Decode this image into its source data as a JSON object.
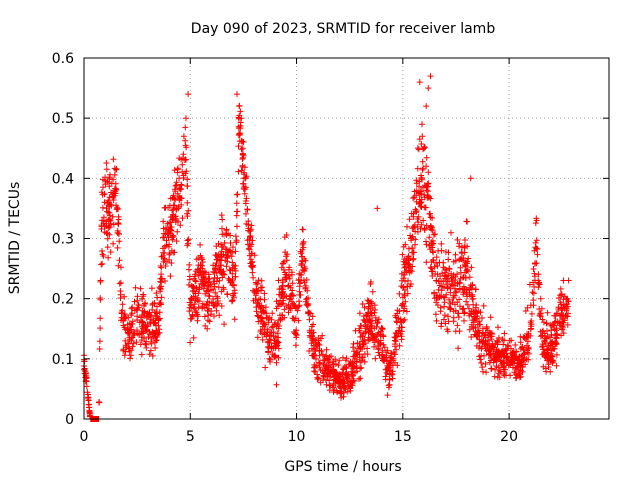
{
  "chart_data": {
    "type": "scatter",
    "title": "Day 090 of 2023, SRMTID for receiver lamb",
    "xlabel": "GPS time / hours",
    "ylabel": "SRMTID / TECUs",
    "xlim": [
      0,
      24.7
    ],
    "ylim": [
      0,
      0.6
    ],
    "xticks": [
      0,
      5,
      10,
      15,
      20
    ],
    "yticks": [
      0,
      0.1,
      0.2,
      0.3,
      0.4,
      0.5,
      0.6
    ],
    "xtick_labels": [
      "0",
      "5",
      "10",
      "15",
      "20"
    ],
    "ytick_labels": [
      "0",
      "0.1",
      "0.2",
      "0.3",
      "0.4",
      "0.5",
      "0.6"
    ],
    "grid": true,
    "marker": "+",
    "color": "#ff0000",
    "series": [
      {
        "name": "SRMTID",
        "profile": [
          [
            0.0,
            0.1,
            0.02
          ],
          [
            0.3,
            0.0,
            0.0
          ],
          [
            0.7,
            0.0,
            0.0
          ],
          [
            0.8,
            0.3,
            0.08
          ],
          [
            1.0,
            0.36,
            0.06
          ],
          [
            1.3,
            0.34,
            0.06
          ],
          [
            1.5,
            0.4,
            0.05
          ],
          [
            1.8,
            0.16,
            0.05
          ],
          [
            2.2,
            0.14,
            0.05
          ],
          [
            2.6,
            0.18,
            0.05
          ],
          [
            3.0,
            0.15,
            0.05
          ],
          [
            3.5,
            0.16,
            0.05
          ],
          [
            3.8,
            0.3,
            0.07
          ],
          [
            4.2,
            0.33,
            0.06
          ],
          [
            4.6,
            0.4,
            0.06
          ],
          [
            4.8,
            0.45,
            0.07
          ],
          [
            5.0,
            0.18,
            0.05
          ],
          [
            5.5,
            0.22,
            0.06
          ],
          [
            6.0,
            0.2,
            0.05
          ],
          [
            6.4,
            0.25,
            0.07
          ],
          [
            6.8,
            0.28,
            0.06
          ],
          [
            7.1,
            0.2,
            0.05
          ],
          [
            7.3,
            0.5,
            0.04
          ],
          [
            7.6,
            0.38,
            0.05
          ],
          [
            8.0,
            0.22,
            0.05
          ],
          [
            8.5,
            0.15,
            0.05
          ],
          [
            9.0,
            0.12,
            0.05
          ],
          [
            9.5,
            0.25,
            0.07
          ],
          [
            10.0,
            0.15,
            0.05
          ],
          [
            10.3,
            0.28,
            0.04
          ],
          [
            10.6,
            0.15,
            0.04
          ],
          [
            11.0,
            0.1,
            0.04
          ],
          [
            11.5,
            0.08,
            0.03
          ],
          [
            12.0,
            0.06,
            0.03
          ],
          [
            12.5,
            0.07,
            0.03
          ],
          [
            13.0,
            0.12,
            0.05
          ],
          [
            13.5,
            0.18,
            0.06
          ],
          [
            14.0,
            0.12,
            0.04
          ],
          [
            14.4,
            0.08,
            0.03
          ],
          [
            14.8,
            0.15,
            0.05
          ],
          [
            15.2,
            0.25,
            0.08
          ],
          [
            15.5,
            0.3,
            0.08
          ],
          [
            15.8,
            0.4,
            0.08
          ],
          [
            16.2,
            0.35,
            0.08
          ],
          [
            16.6,
            0.2,
            0.07
          ],
          [
            17.0,
            0.22,
            0.07
          ],
          [
            17.5,
            0.2,
            0.07
          ],
          [
            18.0,
            0.25,
            0.07
          ],
          [
            18.5,
            0.15,
            0.05
          ],
          [
            19.0,
            0.12,
            0.04
          ],
          [
            19.5,
            0.1,
            0.03
          ],
          [
            20.0,
            0.1,
            0.03
          ],
          [
            20.5,
            0.09,
            0.03
          ],
          [
            21.0,
            0.16,
            0.05
          ],
          [
            21.3,
            0.28,
            0.05
          ],
          [
            21.6,
            0.12,
            0.04
          ],
          [
            22.0,
            0.12,
            0.04
          ],
          [
            22.5,
            0.18,
            0.04
          ],
          [
            22.8,
            0.2,
            0.04
          ]
        ],
        "highlights": [
          [
            4.9,
            0.54
          ],
          [
            4.8,
            0.5
          ],
          [
            4.7,
            0.47
          ],
          [
            7.2,
            0.54
          ],
          [
            7.3,
            0.52
          ],
          [
            7.4,
            0.5
          ],
          [
            15.8,
            0.56
          ],
          [
            16.3,
            0.57
          ],
          [
            16.2,
            0.55
          ],
          [
            16.1,
            0.52
          ],
          [
            15.9,
            0.49
          ],
          [
            16.0,
            0.45
          ],
          [
            16.2,
            0.41
          ],
          [
            13.8,
            0.35
          ],
          [
            21.3,
            0.33
          ],
          [
            18.2,
            0.4
          ]
        ],
        "point_count": 2600
      }
    ]
  }
}
